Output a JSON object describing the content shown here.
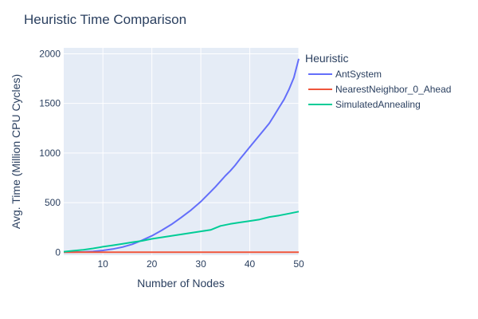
{
  "chart_data": {
    "type": "line",
    "title": "Heuristic Time Comparison",
    "xlabel": "Number of Nodes",
    "ylabel": "Avg. Time (Million CPU Cycles)",
    "xlim": [
      2,
      50
    ],
    "ylim": [
      -30,
      2060
    ],
    "xticks": [
      10,
      20,
      30,
      40,
      50
    ],
    "yticks": [
      0,
      500,
      1000,
      1500,
      2000
    ],
    "grid": true,
    "legend_title": "Heuristic",
    "legend_position": "right",
    "series": [
      {
        "name": "AntSystem",
        "color": "#636efa",
        "x": [
          2,
          4,
          6,
          8,
          10,
          12,
          14,
          16,
          18,
          20,
          22,
          24,
          26,
          28,
          30,
          32,
          33,
          34,
          35,
          36,
          37,
          38,
          39,
          40,
          41,
          42,
          43,
          44,
          45,
          46,
          47,
          48,
          49,
          50
        ],
        "y": [
          0,
          1,
          3,
          8,
          18,
          32,
          52,
          80,
          120,
          165,
          220,
          280,
          350,
          425,
          510,
          610,
          660,
          715,
          770,
          820,
          875,
          940,
          1000,
          1060,
          1120,
          1180,
          1240,
          1300,
          1380,
          1460,
          1540,
          1640,
          1760,
          1950
        ]
      },
      {
        "name": "NearestNeighbor_0_Ahead",
        "color": "#ef553b",
        "x": [
          2,
          10,
          20,
          30,
          40,
          50
        ],
        "y": [
          0,
          0,
          0,
          0,
          0,
          0
        ]
      },
      {
        "name": "SimulatedAnnealing",
        "color": "#00cc96",
        "x": [
          2,
          4,
          6,
          8,
          10,
          12,
          14,
          16,
          18,
          20,
          22,
          24,
          26,
          28,
          30,
          32,
          34,
          36,
          38,
          40,
          42,
          44,
          46,
          48,
          50
        ],
        "y": [
          5,
          15,
          25,
          38,
          55,
          70,
          85,
          100,
          115,
          135,
          150,
          165,
          180,
          195,
          210,
          225,
          265,
          285,
          300,
          315,
          330,
          355,
          370,
          390,
          410
        ]
      }
    ]
  }
}
